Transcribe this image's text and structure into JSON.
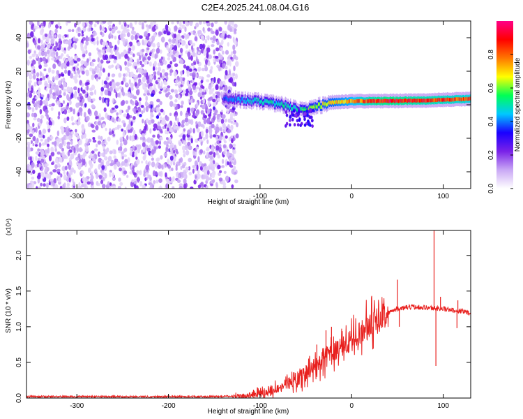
{
  "title": "C2E4.2025.241.08.04.G16",
  "colors": {
    "snr_line": "#e8201e",
    "axis": "#000000",
    "background": "#ffffff"
  },
  "chart_data": [
    {
      "type": "heatmap",
      "xlabel": "Height of straight line (km)",
      "ylabel": "Frequency (Hz)",
      "xlim": [
        -355,
        130
      ],
      "ylim": [
        -50,
        50
      ],
      "xticks": [
        -300,
        -200,
        -100,
        0,
        100
      ],
      "yticks": [
        -40,
        -20,
        0,
        20,
        40
      ],
      "colorbar": {
        "label": "Normalized spectral amplitude",
        "range": [
          0.0,
          1.0
        ],
        "ticks": [
          "0.0",
          "0.2",
          "0.4",
          "0.6",
          "0.8"
        ],
        "colormap": [
          "#ffffff",
          "#c9a8f5",
          "#7a22e8",
          "#1a00ff",
          "#00c8ff",
          "#00ff55",
          "#ffff00",
          "#ff7700",
          "#ff0000",
          "#ff0088"
        ]
      },
      "noise_region": {
        "x": [
          -355,
          -125
        ],
        "freq_range": [
          -50,
          50
        ],
        "amplitude": [
          0.05,
          0.25
        ]
      },
      "ridge": [
        {
          "x": -140,
          "freq": 3.5,
          "amp": 0.38
        },
        {
          "x": -120,
          "freq": 3.0,
          "amp": 0.45
        },
        {
          "x": -100,
          "freq": 2.0,
          "amp": 0.5
        },
        {
          "x": -80,
          "freq": 0.5,
          "amp": 0.52
        },
        {
          "x": -60,
          "freq": -2.5,
          "amp": 0.5
        },
        {
          "x": -50,
          "freq": -3.5,
          "amp": 0.62
        },
        {
          "x": -40,
          "freq": -1.0,
          "amp": 0.65
        },
        {
          "x": -20,
          "freq": 1.5,
          "amp": 0.72
        },
        {
          "x": 0,
          "freq": 2.0,
          "amp": 0.8
        },
        {
          "x": 20,
          "freq": 2.2,
          "amp": 0.9
        },
        {
          "x": 40,
          "freq": 2.2,
          "amp": 0.95
        },
        {
          "x": 60,
          "freq": 2.4,
          "amp": 0.92
        },
        {
          "x": 80,
          "freq": 2.5,
          "amp": 0.9
        },
        {
          "x": 100,
          "freq": 3.0,
          "amp": 0.88
        },
        {
          "x": 130,
          "freq": 3.5,
          "amp": 0.85
        }
      ]
    },
    {
      "type": "line",
      "xlabel": "Height of straight line (km)",
      "ylabel": "SNR (10 * v/v)",
      "scale_label": "(x10⁴)",
      "xlim": [
        -355,
        130
      ],
      "ylim": [
        0,
        2.35
      ],
      "xticks": [
        -300,
        -200,
        -100,
        0,
        100
      ],
      "yticks": [
        "0.0",
        "0.5",
        "1.0",
        "1.5",
        "2.0"
      ],
      "series": [
        {
          "x": [
            -355,
            -300,
            -250,
            -200,
            -150,
            -120,
            -100,
            -90,
            -80,
            -70,
            -60,
            -50,
            -40,
            -30,
            -20,
            -10,
            0,
            10,
            20,
            30,
            40,
            50,
            60,
            70,
            80,
            90,
            100,
            110,
            120,
            130
          ],
          "y": [
            0.02,
            0.02,
            0.02,
            0.02,
            0.02,
            0.03,
            0.06,
            0.1,
            0.14,
            0.2,
            0.27,
            0.35,
            0.45,
            0.55,
            0.65,
            0.72,
            0.8,
            0.92,
            1.03,
            1.12,
            1.2,
            1.25,
            1.27,
            1.28,
            1.27,
            1.26,
            1.25,
            1.23,
            1.22,
            1.19
          ],
          "spikes": [
            {
              "x": -38,
              "y": 0.75
            },
            {
              "x": -28,
              "y": 0.95
            },
            {
              "x": -22,
              "y": 1.0
            },
            {
              "x": 8,
              "y": 1.05
            },
            {
              "x": 50,
              "y": 1.66
            },
            {
              "x": 52,
              "y": 1.0
            },
            {
              "x": 90,
              "y": 2.35
            },
            {
              "x": 92,
              "y": 0.45
            },
            {
              "x": 97,
              "y": 1.42
            },
            {
              "x": 116,
              "y": 1.37
            },
            {
              "x": 115,
              "y": 0.98
            }
          ]
        }
      ]
    }
  ]
}
